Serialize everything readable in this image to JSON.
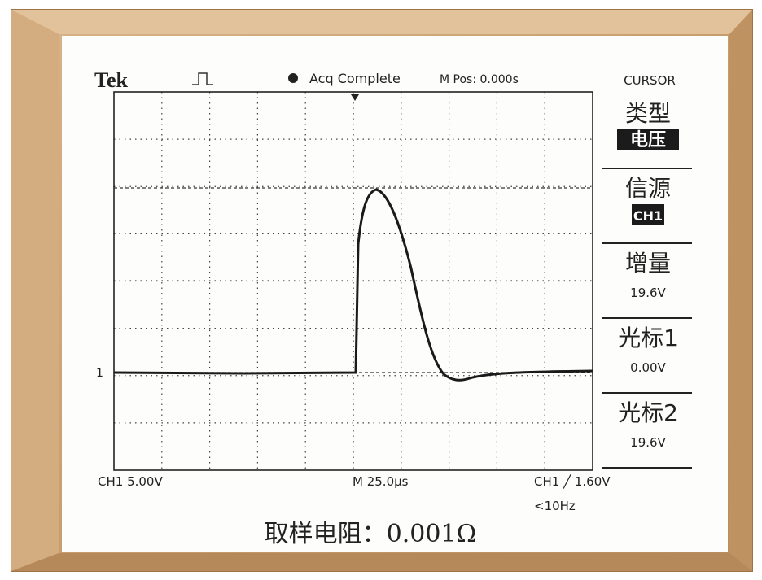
{
  "header": {
    "brand": "Tek",
    "status": "Acq Complete",
    "position": "M Pos: 0.000s"
  },
  "menu": {
    "title": "CURSOR",
    "items": [
      {
        "label": "类型",
        "value": "电压"
      },
      {
        "label": "信源",
        "value": "CH1"
      },
      {
        "label": "增量",
        "value": "19.6V"
      },
      {
        "label": "光标1",
        "value": "0.00V"
      },
      {
        "label": "光标2",
        "value": "19.6V"
      }
    ]
  },
  "marker": "1",
  "footer": {
    "channel": "CH1  5.00V",
    "timebase": "M 25.0µs",
    "trigger": "CH1 ╱ 1.60V",
    "frequency": "<10Hz"
  },
  "caption": "取样电阻：0.001Ω"
}
